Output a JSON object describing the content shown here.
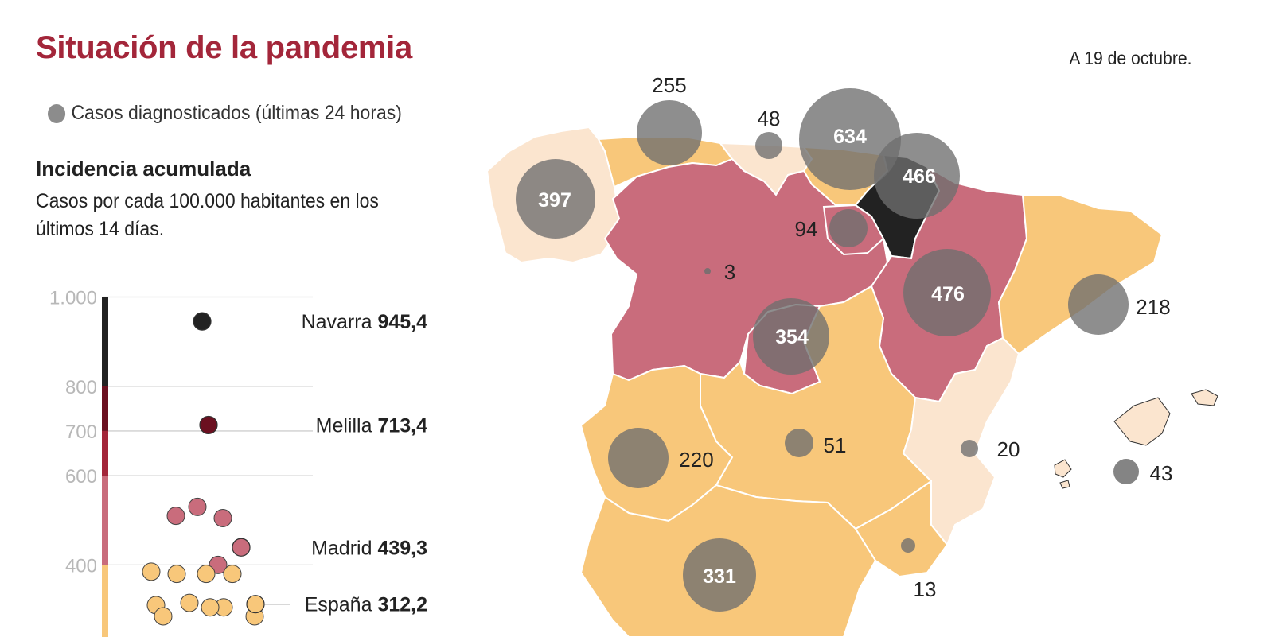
{
  "title": "Situación de la pandemia",
  "date": "A 19 de octubre.",
  "legend": {
    "icon": "gray-circle",
    "label": "Casos diagnosticados (últimas 24 horas)"
  },
  "incidence": {
    "title": "Incidencia acumulada",
    "description": "Casos por cada 100.000 habitantes en los últimos 14 días."
  },
  "colors": {
    "title": "#a3263a",
    "black": "#222222",
    "dark_red": "#6b1020",
    "red": "#a3263a",
    "pink": "#c96c7c",
    "orange": "#f8c77a",
    "light": "#fbe5cf",
    "bubble": "#6e6e6e"
  },
  "chart_data": [
    {
      "type": "scatter",
      "title": "Incidencia acumulada",
      "ylim": [
        0,
        1000
      ],
      "yticks": [
        {
          "value": 1000,
          "label": "1.000"
        },
        {
          "value": 800,
          "label": "800"
        },
        {
          "value": 700,
          "label": "700"
        },
        {
          "value": 600,
          "label": "600"
        },
        {
          "value": 400,
          "label": "400"
        }
      ],
      "labeled_points": [
        {
          "name": "Navarra",
          "value_label": "945,4",
          "value": 945.4
        },
        {
          "name": "Melilla",
          "value_label": "713,4",
          "value": 713.4
        },
        {
          "name": "Madrid",
          "value_label": "439,3",
          "value": 439.3
        },
        {
          "name": "España",
          "value_label": "312,2",
          "value": 312.2
        }
      ],
      "unlabeled_values": [
        530,
        510,
        505,
        440,
        400,
        385,
        380,
        380,
        380,
        315,
        305,
        305,
        310,
        285,
        285
      ]
    },
    {
      "type": "bubble-map",
      "title": "Casos diagnosticados (últimas 24 horas)",
      "cases": [
        {
          "region": "Galicia",
          "value": 397
        },
        {
          "region": "Asturias",
          "value": 255
        },
        {
          "region": "Cantabria",
          "value": 48
        },
        {
          "region": "País Vasco",
          "value": 634
        },
        {
          "region": "Navarra",
          "value": 466
        },
        {
          "region": "La Rioja",
          "value": 94
        },
        {
          "region": "Castilla y León",
          "value": 3
        },
        {
          "region": "Aragón",
          "value": 476
        },
        {
          "region": "Cataluña",
          "value": 218
        },
        {
          "region": "Madrid",
          "value": 354
        },
        {
          "region": "Extremadura",
          "value": 220
        },
        {
          "region": "Castilla-La Mancha",
          "value": 51
        },
        {
          "region": "Comunidad Valenciana",
          "value": 20
        },
        {
          "region": "Baleares",
          "value": 43
        },
        {
          "region": "Murcia",
          "value": 13
        },
        {
          "region": "Andalucía",
          "value": 331
        }
      ]
    }
  ]
}
